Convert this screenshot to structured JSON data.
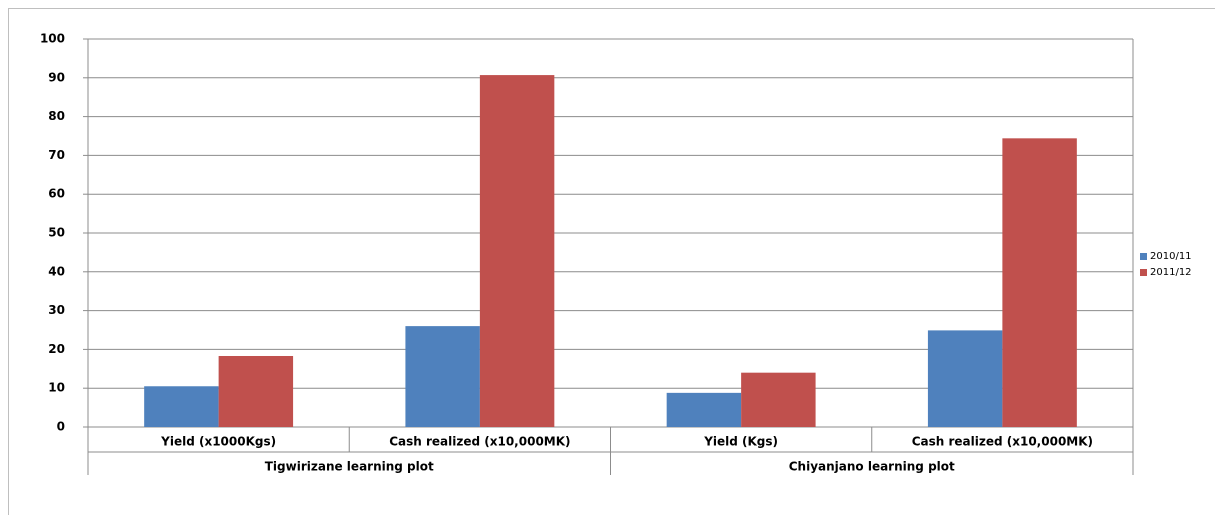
{
  "chart_data": {
    "type": "bar",
    "groups": [
      {
        "name": "Tigwirizane learning plot",
        "categories": [
          "Yield (x1000Kgs)",
          "Cash realized (x10,000MK)"
        ]
      },
      {
        "name": "Chiyanjano learning plot",
        "categories": [
          "Yield (Kgs)",
          "Cash realized (x10,000MK)"
        ]
      }
    ],
    "series": [
      {
        "name": "2010/11",
        "color": "#4f81bd",
        "values": [
          10.5,
          26,
          8.8,
          24.9
        ]
      },
      {
        "name": "2011/12",
        "color": "#c0504d",
        "values": [
          18.3,
          90.7,
          14,
          74.4
        ]
      }
    ],
    "ylim": [
      0,
      100
    ],
    "yticks": [
      0,
      10,
      20,
      30,
      40,
      50,
      60,
      70,
      80,
      90,
      100
    ],
    "grid": true,
    "legend": "right"
  }
}
